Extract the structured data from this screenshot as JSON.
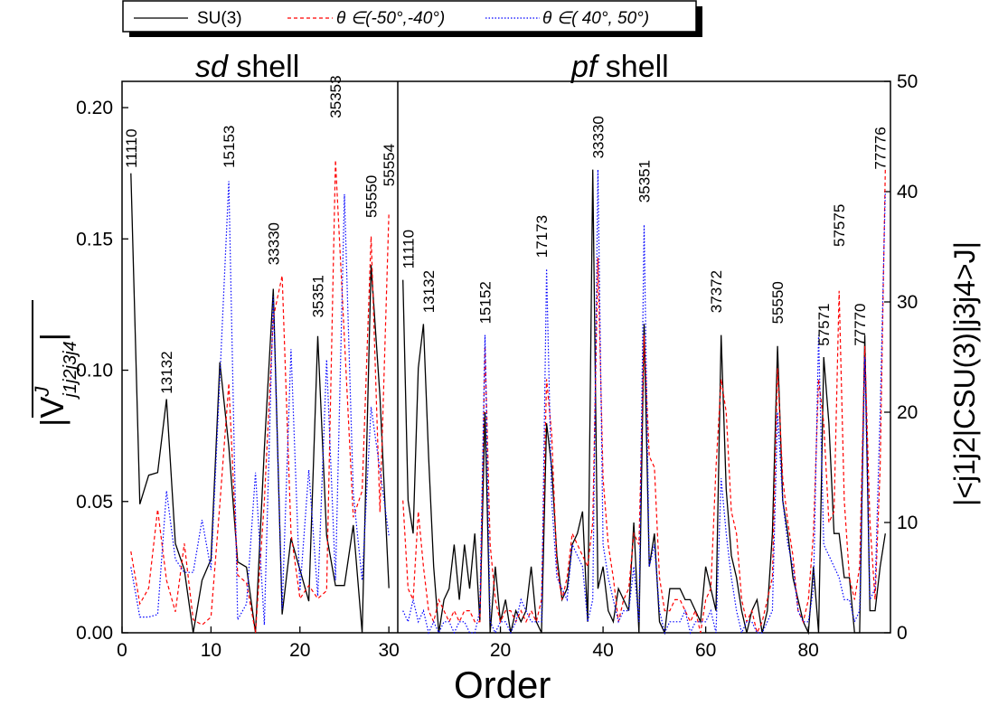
{
  "legend": {
    "items": [
      {
        "label": "SU(3)",
        "color": "#000000",
        "dash": "solid"
      },
      {
        "label": "θ ∈(-50°,-40°)",
        "color": "#ff0000",
        "dash": "dashed"
      },
      {
        "label": "θ ∈( 40°, 50°)",
        "color": "#0000ff",
        "dash": "dotted"
      }
    ]
  },
  "xlabel": "Order",
  "chart_data": [
    {
      "type": "line",
      "title": "sd shell",
      "title_italic_part": "sd",
      "title_rest": " shell",
      "ylabel": "|V̄J j1j2j3j4|",
      "ylabel_main": "|V",
      "ylabel_sup": "J",
      "ylabel_sub": "j1j2j3j4",
      "ylabel_end": "|",
      "xlim": [
        0,
        31
      ],
      "ylim": [
        0,
        0.21
      ],
      "xticks": [
        "0",
        "10",
        "20",
        "30"
      ],
      "yticks": [
        "0.00",
        "0.05",
        "0.10",
        "0.15",
        "0.20"
      ],
      "series": [
        {
          "name": "SU(3)",
          "x": [
            1,
            2,
            3,
            4,
            5,
            6,
            7,
            8,
            9,
            10,
            11,
            12,
            13,
            14,
            15,
            16,
            17,
            18,
            19,
            20,
            21,
            22,
            23,
            24,
            25,
            26,
            27,
            28,
            29,
            30
          ],
          "values": [
            0.175,
            0.049,
            0.06,
            0.061,
            0.089,
            0.034,
            0.024,
            0.0,
            0.02,
            0.028,
            0.103,
            0.071,
            0.027,
            0.025,
            0.0,
            0.07,
            0.131,
            0.007,
            0.036,
            0.024,
            0.012,
            0.113,
            0.037,
            0.018,
            0.018,
            0.041,
            0.0,
            0.14,
            0.09,
            0.017
          ]
        },
        {
          "name": "θ ∈(-50°,-40°)",
          "x": [
            1,
            2,
            3,
            4,
            5,
            6,
            7,
            8,
            9,
            10,
            11,
            12,
            13,
            14,
            15,
            16,
            17,
            18,
            19,
            20,
            21,
            22,
            23,
            24,
            25,
            26,
            27,
            28,
            29,
            30
          ],
          "values": [
            0.031,
            0.011,
            0.017,
            0.047,
            0.02,
            0.008,
            0.034,
            0.005,
            0.003,
            0.006,
            0.049,
            0.095,
            0.022,
            0.019,
            0.0,
            0.05,
            0.12,
            0.136,
            0.038,
            0.013,
            0.018,
            0.013,
            0.016,
            0.18,
            0.112,
            0.044,
            0.054,
            0.151,
            0.046,
            0.16
          ]
        },
        {
          "name": "θ ∈( 40°, 50°)",
          "x": [
            1,
            2,
            3,
            4,
            5,
            6,
            7,
            8,
            9,
            10,
            11,
            12,
            13,
            14,
            15,
            16,
            17,
            18,
            19,
            20,
            21,
            22,
            23,
            24,
            25,
            26,
            27,
            28,
            29,
            30
          ],
          "values": [
            0.025,
            0.006,
            0.006,
            0.007,
            0.054,
            0.028,
            0.023,
            0.023,
            0.043,
            0.024,
            0.097,
            0.172,
            0.005,
            0.011,
            0.061,
            0.003,
            0.128,
            0.009,
            0.108,
            0.016,
            0.062,
            0.014,
            0.104,
            0.02,
            0.167,
            0.053,
            0.02,
            0.086,
            0.062,
            0.037
          ]
        }
      ],
      "annotations": [
        {
          "text": "11110",
          "x": 1,
          "y": 0.177
        },
        {
          "text": "13132",
          "x": 5,
          "y": 0.091
        },
        {
          "text": "15153",
          "x": 12,
          "y": 0.177
        },
        {
          "text": "33330",
          "x": 17,
          "y": 0.14
        },
        {
          "text": "35351",
          "x": 22,
          "y": 0.12
        },
        {
          "text": "35353",
          "x": 24,
          "y": 0.196
        },
        {
          "text": "55550",
          "x": 28,
          "y": 0.158
        },
        {
          "text": "55554",
          "x": 30,
          "y": 0.17
        }
      ]
    },
    {
      "type": "line",
      "title": "pf shell",
      "title_italic_part": "pf",
      "title_rest": " shell",
      "ylabel": "|<j1j2|CSU(3)|j3j4>J|",
      "xlim": [
        0,
        96
      ],
      "ylim": [
        0,
        50
      ],
      "xticks": [
        "20",
        "40",
        "60",
        "80"
      ],
      "xtick_values": [
        20,
        40,
        60,
        80
      ],
      "yticks": [
        "0",
        "10",
        "20",
        "30",
        "40",
        "50"
      ],
      "series": [
        {
          "name": "SU(3)",
          "x": [
            1,
            2,
            3,
            4,
            5,
            6,
            7,
            8,
            9,
            10,
            11,
            12,
            13,
            14,
            15,
            16,
            17,
            18,
            19,
            20,
            21,
            22,
            23,
            24,
            25,
            26,
            27,
            28,
            29,
            30,
            31,
            32,
            33,
            34,
            35,
            36,
            37,
            38,
            39,
            40,
            41,
            42,
            43,
            44,
            45,
            46,
            47,
            48,
            49,
            50,
            51,
            52,
            53,
            54,
            55,
            56,
            57,
            58,
            59,
            60,
            61,
            62,
            63,
            64,
            65,
            66,
            67,
            68,
            69,
            70,
            71,
            72,
            73,
            74,
            75,
            76,
            77,
            78,
            79,
            80,
            81,
            82,
            83,
            84,
            85,
            86,
            87,
            88,
            89,
            90,
            91,
            92,
            93,
            94,
            95
          ],
          "values": [
            32,
            12,
            9,
            24,
            28,
            16,
            6,
            0,
            3,
            4,
            8,
            3,
            8,
            4,
            9,
            1,
            20,
            0,
            6,
            1,
            3,
            0,
            2,
            1,
            2,
            6,
            1,
            0,
            19,
            15,
            7,
            3,
            4,
            8,
            9,
            11,
            1,
            42,
            4,
            6,
            2,
            1,
            4,
            3,
            2,
            10,
            0,
            28,
            6,
            9,
            1,
            0,
            4,
            4,
            4,
            3,
            3,
            2,
            1,
            6,
            4,
            2,
            27,
            13,
            7,
            5,
            2,
            0,
            2,
            3,
            0,
            2,
            9,
            26,
            12,
            9,
            5,
            3,
            1,
            0,
            6,
            0,
            25,
            19,
            9,
            9,
            5,
            5,
            0,
            0,
            27,
            2,
            2,
            6,
            9
          ]
        },
        {
          "name": "θ ∈(-50°,-40°)",
          "x": [
            1,
            2,
            3,
            4,
            5,
            6,
            7,
            8,
            9,
            10,
            11,
            12,
            13,
            14,
            15,
            16,
            17,
            18,
            19,
            20,
            21,
            22,
            23,
            24,
            25,
            26,
            27,
            28,
            29,
            30,
            31,
            32,
            33,
            34,
            35,
            36,
            37,
            38,
            39,
            40,
            41,
            42,
            43,
            44,
            45,
            46,
            47,
            48,
            49,
            50,
            51,
            52,
            53,
            54,
            55,
            56,
            57,
            58,
            59,
            60,
            61,
            62,
            63,
            64,
            65,
            66,
            67,
            68,
            69,
            70,
            71,
            72,
            73,
            74,
            75,
            76,
            77,
            78,
            79,
            80,
            81,
            82,
            83,
            84,
            85,
            86,
            87,
            88,
            89,
            90,
            91,
            92,
            93,
            94,
            95
          ],
          "values": [
            12,
            4,
            3,
            11,
            6,
            2,
            1,
            3,
            2,
            1,
            2,
            1,
            2,
            2,
            1,
            1,
            26,
            8,
            3,
            1,
            2,
            2,
            1,
            2,
            1,
            2,
            1,
            3,
            23,
            18,
            6,
            3,
            5,
            9,
            8,
            7,
            6,
            10,
            34,
            14,
            8,
            5,
            1,
            3,
            4,
            9,
            8,
            27,
            16,
            15,
            5,
            2,
            2,
            3,
            3,
            2,
            1,
            2,
            0,
            3,
            4,
            15,
            23,
            20,
            11,
            9,
            3,
            1,
            2,
            0,
            1,
            3,
            5,
            24,
            14,
            10,
            7,
            2,
            1,
            3,
            9,
            23,
            19,
            10,
            11,
            31,
            12,
            5,
            3,
            6,
            26,
            10,
            3,
            15,
            42
          ]
        },
        {
          "name": "θ ∈( 40°, 50°)",
          "x": [
            1,
            2,
            3,
            4,
            5,
            6,
            7,
            8,
            9,
            10,
            11,
            12,
            13,
            14,
            15,
            16,
            17,
            18,
            19,
            20,
            21,
            22,
            23,
            24,
            25,
            26,
            27,
            28,
            29,
            30,
            31,
            32,
            33,
            34,
            35,
            36,
            37,
            38,
            39,
            40,
            41,
            42,
            43,
            44,
            45,
            46,
            47,
            48,
            49,
            50,
            51,
            52,
            53,
            54,
            55,
            56,
            57,
            58,
            59,
            60,
            61,
            62,
            63,
            64,
            65,
            66,
            67,
            68,
            69,
            70,
            71,
            72,
            73,
            74,
            75,
            76,
            77,
            78,
            79,
            80,
            81,
            82,
            83,
            84,
            85,
            86,
            87,
            88,
            89,
            90,
            91,
            92,
            93,
            94,
            95
          ],
          "values": [
            2,
            1,
            3,
            1,
            2,
            0,
            1,
            0,
            1,
            1,
            0,
            1,
            1,
            0,
            0,
            2,
            27,
            1,
            0,
            1,
            1,
            0,
            1,
            3,
            2,
            1,
            1,
            1,
            33,
            12,
            5,
            4,
            3,
            8,
            7,
            6,
            1,
            3,
            42,
            8,
            5,
            3,
            1,
            2,
            2,
            6,
            1,
            37,
            6,
            8,
            2,
            0,
            1,
            1,
            1,
            2,
            0,
            1,
            1,
            1,
            2,
            0,
            14,
            9,
            5,
            2,
            0,
            1,
            1,
            0,
            0,
            1,
            2,
            20,
            12,
            8,
            6,
            2,
            1,
            1,
            4,
            27,
            8,
            7,
            6,
            5,
            3,
            3,
            1,
            2,
            25,
            3,
            4,
            20,
            40
          ]
        }
      ],
      "annotations": [
        {
          "text": "11110",
          "x": 2,
          "y": 33
        },
        {
          "text": "13132",
          "x": 6,
          "y": 29
        },
        {
          "text": "15152",
          "x": 17,
          "y": 28
        },
        {
          "text": "17173",
          "x": 28,
          "y": 34
        },
        {
          "text": "33330",
          "x": 39,
          "y": 43
        },
        {
          "text": "35351",
          "x": 48,
          "y": 39
        },
        {
          "text": "37372",
          "x": 62,
          "y": 29
        },
        {
          "text": "55550",
          "x": 74,
          "y": 28
        },
        {
          "text": "57571",
          "x": 83,
          "y": 26
        },
        {
          "text": "57575",
          "x": 86,
          "y": 35
        },
        {
          "text": "77770",
          "x": 90,
          "y": 26
        },
        {
          "text": "77776",
          "x": 94,
          "y": 42
        }
      ]
    }
  ]
}
